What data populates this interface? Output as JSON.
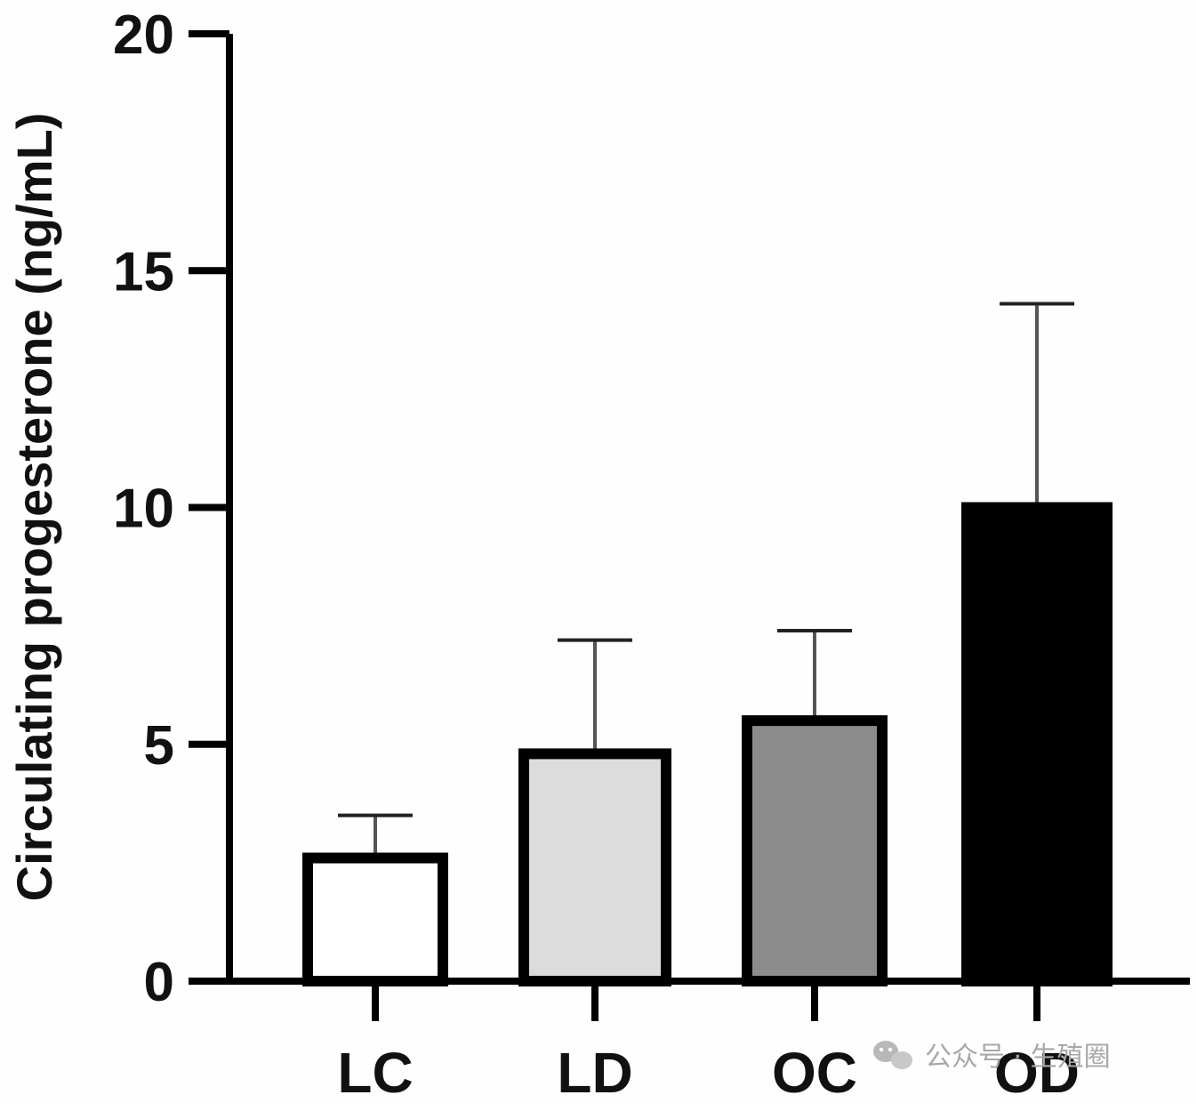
{
  "chart_data": {
    "type": "bar",
    "title": "",
    "ylabel": "Circulating progesterone (ng/mL)",
    "xlabel": "",
    "ylim": [
      0,
      20
    ],
    "yticks": [
      0,
      5,
      10,
      15,
      20
    ],
    "categories": [
      "LC",
      "LD",
      "OC",
      "OD"
    ],
    "values": [
      2.6,
      4.8,
      5.5,
      10.0
    ],
    "errors": [
      0.9,
      2.4,
      1.9,
      4.3
    ],
    "colors": [
      "#ffffff",
      "#dcdcdc",
      "#8c8c8c",
      "#000000"
    ],
    "grid": false,
    "legend": "none"
  },
  "watermark": {
    "text": "公众号 · 生殖圈",
    "icon": "wechat-icon"
  }
}
